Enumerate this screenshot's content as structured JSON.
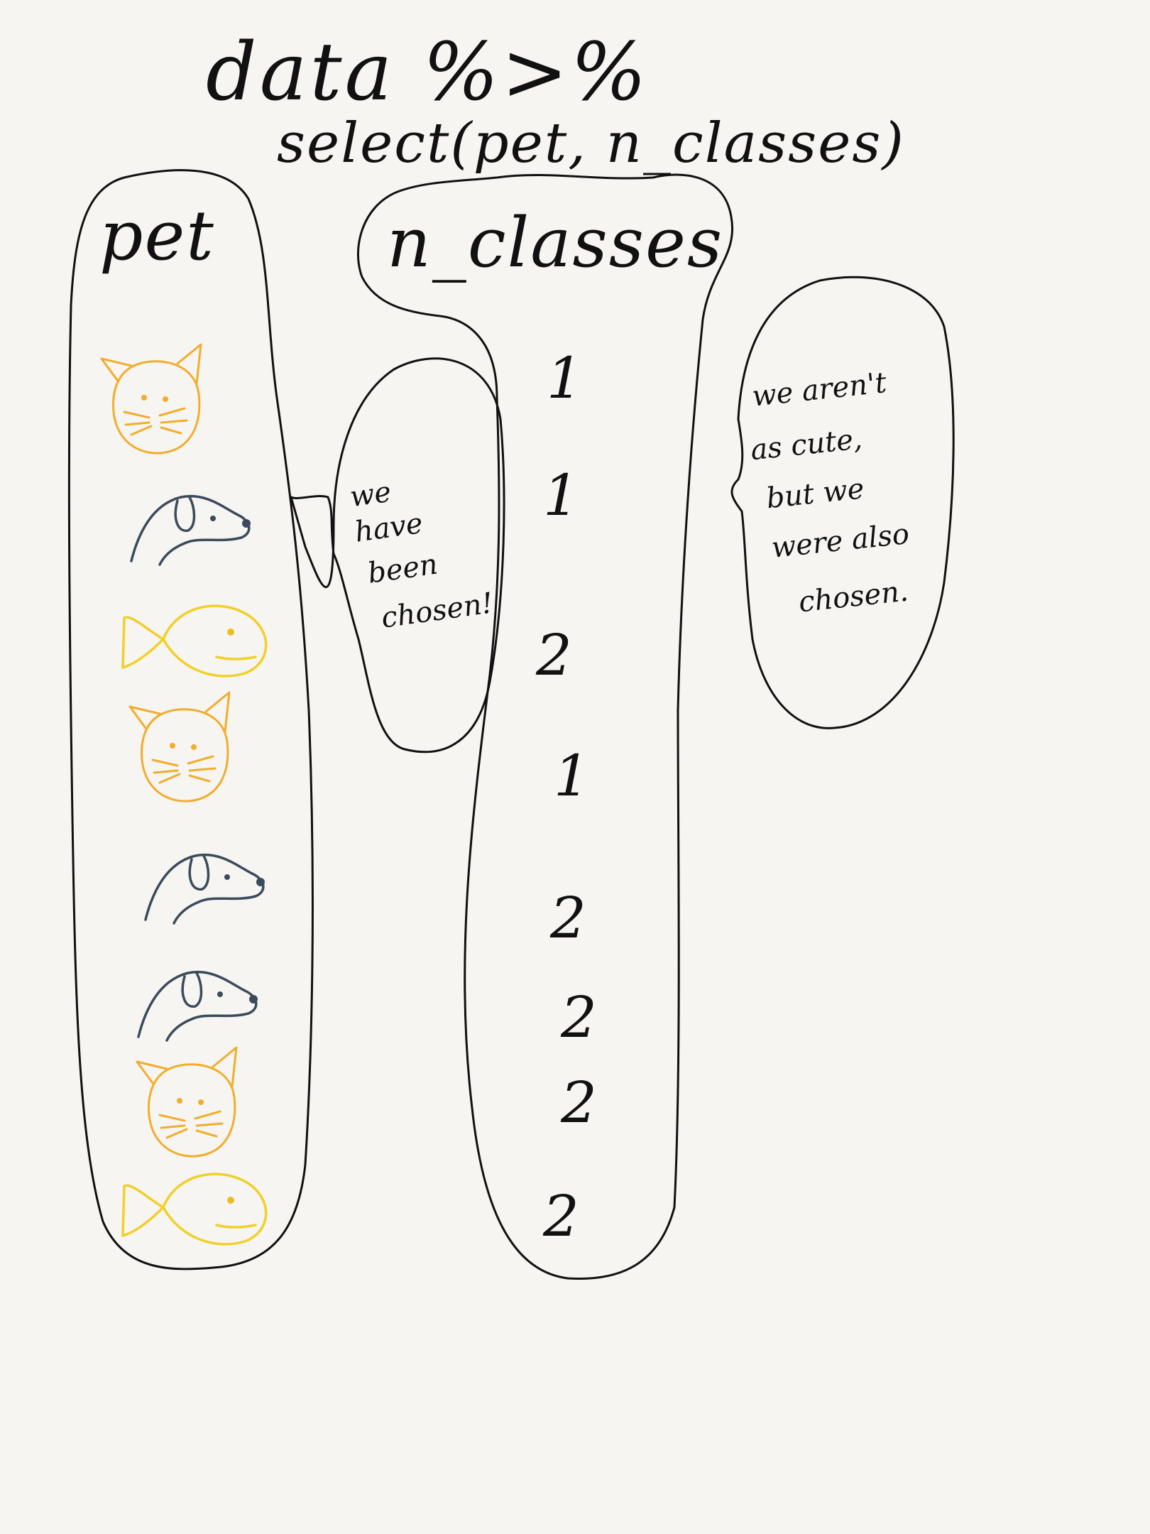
{
  "title": {
    "line1": "data %>%",
    "line2": "select(pet, n_classes)"
  },
  "columns": {
    "pet": {
      "header": "pet",
      "items": [
        "cat",
        "dog",
        "fish",
        "cat",
        "dog",
        "dog",
        "cat",
        "fish"
      ]
    },
    "n_classes": {
      "header": "n_classes",
      "values": [
        "1",
        "1",
        "2",
        "1",
        "2",
        "2",
        "2",
        "2"
      ]
    }
  },
  "bubbles": {
    "left": [
      "we",
      "have",
      "been",
      "chosen!"
    ],
    "right": [
      "we aren't",
      "as cute,",
      "but we",
      "were also",
      "chosen."
    ]
  },
  "colors": {
    "cat": "#f2ad2c",
    "dog": "#3a4b5c",
    "fish": "#f2cf2a",
    "ink": "#111111",
    "paper": "#f6f5f2"
  }
}
